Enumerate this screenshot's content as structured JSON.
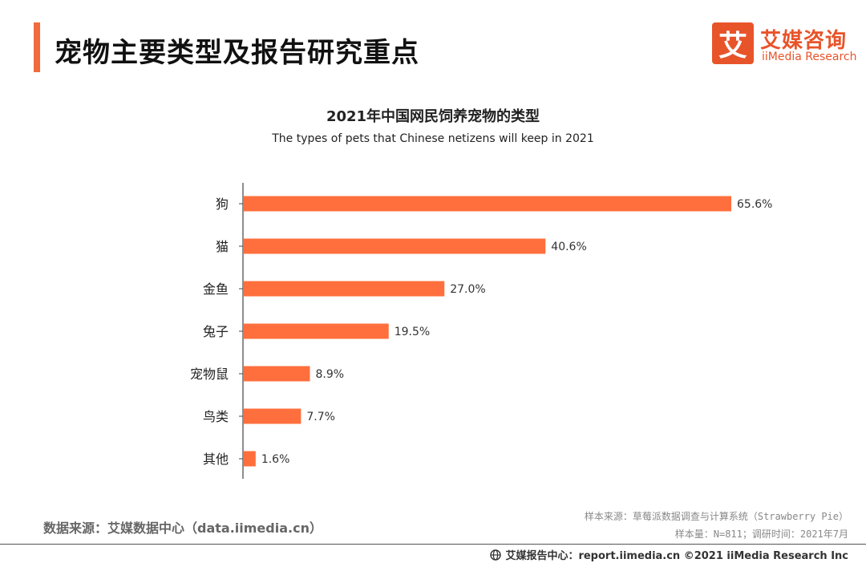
{
  "header": {
    "title": "宠物主要类型及报告研究重点"
  },
  "logo": {
    "mark": "艾",
    "name_cn": "艾媒咨询",
    "name_en": "iiMedia Research"
  },
  "chart_data": {
    "type": "bar",
    "orientation": "horizontal",
    "title": "2021年中国网民饲养宠物的类型",
    "subtitle": "The types of pets that Chinese netizens will keep in 2021",
    "categories": [
      "狗",
      "猫",
      "金鱼",
      "兔子",
      "宠物鼠",
      "鸟类",
      "其他"
    ],
    "values": [
      65.6,
      40.6,
      27.0,
      19.5,
      8.9,
      7.7,
      1.6
    ],
    "value_labels": [
      "65.6%",
      "40.6%",
      "27.0%",
      "19.5%",
      "8.9%",
      "7.7%",
      "1.6%"
    ],
    "unit": "%",
    "xlim": [
      0,
      65.6
    ],
    "grid": false,
    "legend": "none",
    "bar_color": "#ff6f3d"
  },
  "sources": {
    "data_source": "数据来源：艾媒数据中心（data.iimedia.cn）",
    "sample_source": "样本来源：草莓派数据调查与计算系统（Strawberry Pie）",
    "sample_info": "样本量：N=811；调研时间：2021年7月"
  },
  "footer": {
    "text": "艾媒报告中心：report.iimedia.cn ©2021 iiMedia Research Inc",
    "icon": "globe-icon"
  },
  "colors": {
    "accent": "#f26a3d",
    "brand": "#e8542a"
  }
}
